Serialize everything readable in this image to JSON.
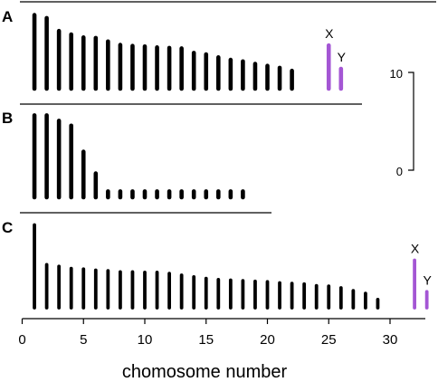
{
  "chart_data": {
    "type": "bar",
    "xlabel": "chomosome number",
    "x_ticks": [
      0,
      5,
      10,
      15,
      20,
      25,
      30
    ],
    "xlim": [
      0,
      33
    ],
    "scale_bar": {
      "ticks": [
        0,
        10
      ],
      "range": [
        0,
        10
      ]
    },
    "colors": {
      "autosome": "#000000",
      "sex_chromosome": "#a456d4"
    },
    "panels": [
      {
        "label": "A",
        "autosomes": {
          "x": [
            1,
            2,
            3,
            4,
            5,
            6,
            7,
            8,
            9,
            10,
            11,
            12,
            13,
            14,
            15,
            16,
            17,
            18,
            19,
            20,
            21,
            22
          ],
          "values": [
            14.8,
            14.2,
            11.6,
            10.9,
            10.3,
            10.2,
            9.5,
            8.8,
            8.6,
            8.5,
            8.3,
            8.2,
            8.1,
            7.2,
            6.9,
            6.3,
            5.8,
            5.5,
            5.0,
            4.6,
            4.2,
            3.6
          ]
        },
        "sex_chromosomes": [
          {
            "label": "X",
            "x": 25,
            "value": 8.7
          },
          {
            "label": "Y",
            "x": 26,
            "value": 4.0
          }
        ]
      },
      {
        "label": "B",
        "autosomes": {
          "x": [
            1,
            2,
            3,
            4,
            5,
            6,
            7,
            8,
            9,
            10,
            11,
            12,
            13,
            14,
            15,
            16,
            17,
            18
          ],
          "values": [
            15.1,
            15.1,
            14.1,
            13.2,
            8.4,
            4.4,
            1.1,
            1.1,
            1.1,
            1.1,
            1.1,
            1.1,
            1.1,
            1.1,
            1.1,
            1.1,
            1.1,
            1.1
          ]
        },
        "sex_chromosomes": []
      },
      {
        "label": "C",
        "autosomes": {
          "x": [
            1,
            2,
            3,
            4,
            5,
            6,
            7,
            8,
            9,
            10,
            11,
            12,
            13,
            14,
            15,
            16,
            17,
            18,
            19,
            20,
            21,
            22,
            23,
            24,
            25,
            26,
            27,
            28,
            29
          ],
          "values": [
            15.0,
            7.8,
            7.5,
            7.1,
            7.0,
            6.8,
            6.7,
            6.5,
            6.5,
            6.4,
            6.4,
            6.2,
            5.9,
            5.6,
            5.3,
            5.1,
            5.0,
            4.9,
            4.8,
            4.7,
            4.5,
            4.4,
            4.3,
            4.0,
            3.9,
            3.6,
            3.1,
            2.6,
            1.5
          ]
        },
        "sex_chromosomes": [
          {
            "label": "X",
            "x": 32,
            "value": 8.6
          },
          {
            "label": "Y",
            "x": 33,
            "value": 2.9
          }
        ]
      }
    ]
  }
}
